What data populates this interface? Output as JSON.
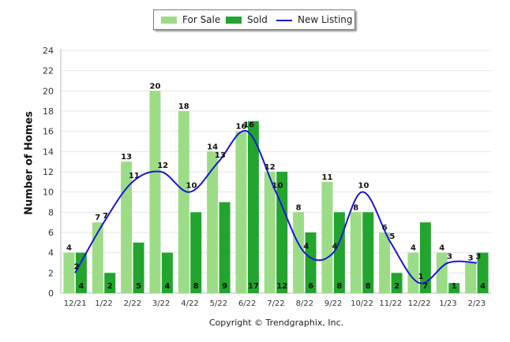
{
  "chart_data": {
    "type": "bar",
    "title": "",
    "xlabel": "",
    "ylabel": "Number of Homes",
    "ylim": [
      0,
      24
    ],
    "ytick_step": 2,
    "grid": true,
    "legend_position": "top-center",
    "categories": [
      "12/21",
      "1/22",
      "2/22",
      "3/22",
      "4/22",
      "5/22",
      "6/22",
      "7/22",
      "8/22",
      "9/22",
      "10/22",
      "11/22",
      "12/22",
      "1/23",
      "2/23"
    ],
    "series": [
      {
        "name": "For Sale",
        "kind": "bar",
        "color": "#9ddc86",
        "values": [
          4,
          7,
          13,
          20,
          18,
          14,
          16,
          12,
          8,
          11,
          8,
          6,
          4,
          4,
          3
        ],
        "value_labels": [
          "4",
          "7",
          "13",
          "20",
          "18",
          "14",
          "16",
          "12",
          "8",
          "11",
          "8",
          "6",
          "4",
          "4",
          "3"
        ]
      },
      {
        "name": "Sold",
        "kind": "bar",
        "color": "#22a52e",
        "values": [
          4,
          2,
          5,
          4,
          8,
          9,
          17,
          12,
          6,
          8,
          8,
          2,
          7,
          1,
          4
        ],
        "value_labels": [
          "4",
          "2",
          "5",
          "4",
          "8",
          "9",
          "17",
          "12",
          "6",
          "8",
          "8",
          "2",
          "7",
          "1",
          "4"
        ]
      },
      {
        "name": "New Listing",
        "kind": "line",
        "color": "#1a17d9",
        "values": [
          2,
          7,
          11,
          12,
          10,
          13,
          16,
          10,
          4,
          4,
          10,
          5,
          1,
          3,
          3
        ],
        "value_labels": [
          "2",
          "7",
          "11",
          "12",
          "10",
          "13",
          "16",
          "10",
          "4",
          "4",
          "10",
          "5",
          "1",
          "3",
          "3"
        ]
      }
    ]
  },
  "legend": {
    "for_sale": "For Sale",
    "sold": "Sold",
    "new_listing": "New Listing"
  },
  "footer": {
    "copyright": "Copyright © Trendgraphix, Inc."
  }
}
